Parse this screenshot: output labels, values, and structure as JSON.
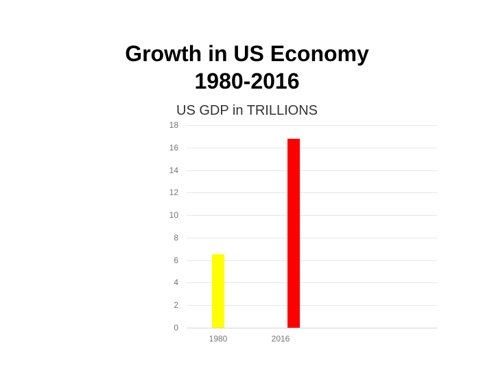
{
  "slide": {
    "title_line1": "Growth in US Economy",
    "title_line2": "1980-2016"
  },
  "chart_data": {
    "type": "bar",
    "title": "US GDP in TRILLIONS",
    "categories": [
      "1980",
      "2016"
    ],
    "values": [
      6.5,
      16.8
    ],
    "bar_colors": [
      "#ffff00",
      "#fe0000"
    ],
    "xlabel": "",
    "ylabel": "",
    "ylim": [
      0,
      18
    ],
    "ytick_interval": 2,
    "grid": true,
    "legend_position": "none",
    "axis_label_color": "#757575",
    "gridline_color": "#e6e6e6",
    "baseline_color": "#d4d4d4"
  }
}
